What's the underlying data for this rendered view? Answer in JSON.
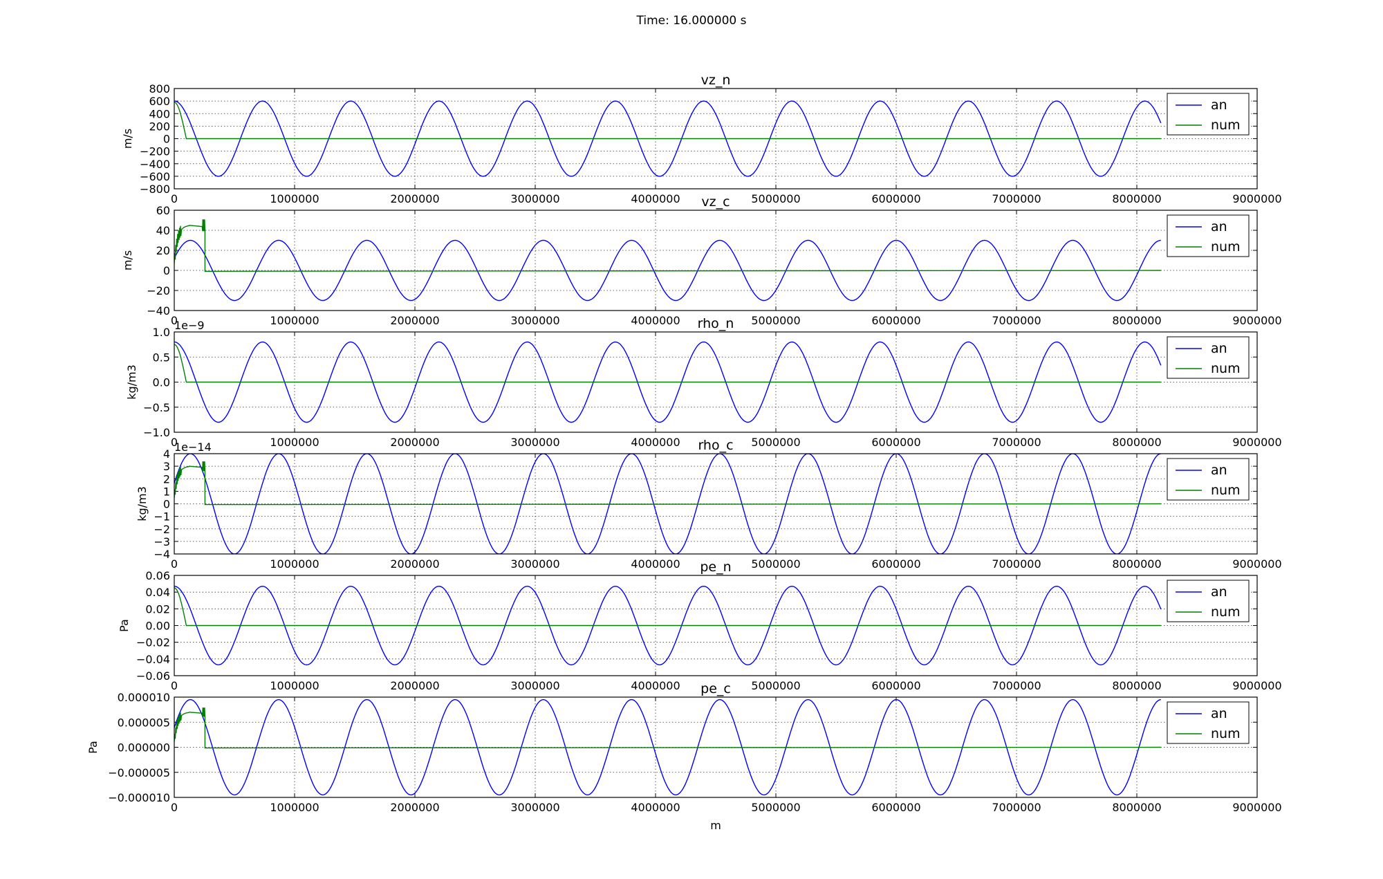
{
  "figure": {
    "suptitle": "Time: 16.000000 s",
    "shared_xlabel": "m"
  },
  "chart_data": [
    {
      "type": "line",
      "title": "vz_n",
      "ylabel": "m/s",
      "xlabel": "",
      "xlim": [
        0,
        9000000
      ],
      "ylim": [
        -800,
        800
      ],
      "xticks": [
        0,
        1000000,
        2000000,
        3000000,
        4000000,
        5000000,
        6000000,
        7000000,
        8000000,
        9000000
      ],
      "xtick_labels": [
        "0",
        "1000000",
        "2000000",
        "3000000",
        "4000000",
        "5000000",
        "6000000",
        "7000000",
        "8000000",
        "9000000"
      ],
      "yticks": [
        -800,
        -600,
        -400,
        -200,
        0,
        200,
        400,
        600,
        800
      ],
      "ytick_labels": [
        "−800",
        "−600",
        "−400",
        "−200",
        "0",
        "200",
        "400",
        "600",
        "800"
      ],
      "offset_label": "",
      "grid": true,
      "legend": "upper right",
      "x_end": 8200000,
      "series": [
        {
          "name": "an",
          "color": "#0000ff",
          "amplitude": 600,
          "wavelength": 733333,
          "phase": 0.0
        },
        {
          "name": "num",
          "color": "#008000",
          "start_value": 580,
          "decay_x": 100000,
          "spikes": false
        }
      ]
    },
    {
      "type": "line",
      "title": "vz_c",
      "ylabel": "m/s",
      "xlabel": "",
      "xlim": [
        0,
        9000000
      ],
      "ylim": [
        -40,
        60
      ],
      "xticks": [
        0,
        1000000,
        2000000,
        3000000,
        4000000,
        5000000,
        6000000,
        7000000,
        8000000,
        9000000
      ],
      "xtick_labels": [
        "0",
        "1000000",
        "2000000",
        "3000000",
        "4000000",
        "5000000",
        "6000000",
        "7000000",
        "8000000",
        "9000000"
      ],
      "yticks": [
        -40,
        -20,
        0,
        20,
        40,
        60
      ],
      "ytick_labels": [
        "−40",
        "−20",
        "0",
        "20",
        "40",
        "60"
      ],
      "offset_label": "",
      "grid": true,
      "legend": "upper right",
      "x_end": 8200000,
      "series": [
        {
          "name": "an",
          "color": "#0000ff",
          "amplitude": 30,
          "wavelength": 733333,
          "phase": -1.15
        },
        {
          "name": "num",
          "color": "#008000",
          "plateau": 45,
          "plateau_end_x": 255000,
          "spikes": true
        }
      ]
    },
    {
      "type": "line",
      "title": "rho_n",
      "ylabel": "kg/m3",
      "xlabel": "",
      "xlim": [
        0,
        9000000
      ],
      "ylim": [
        -1.0,
        1.0
      ],
      "xticks": [
        0,
        1000000,
        2000000,
        3000000,
        4000000,
        5000000,
        6000000,
        7000000,
        8000000,
        9000000
      ],
      "xtick_labels": [
        "0",
        "1000000",
        "2000000",
        "3000000",
        "4000000",
        "5000000",
        "6000000",
        "7000000",
        "8000000",
        "9000000"
      ],
      "yticks": [
        -1.0,
        -0.5,
        0.0,
        0.5,
        1.0
      ],
      "ytick_labels": [
        "−1.0",
        "−0.5",
        "0.0",
        "0.5",
        "1.0"
      ],
      "offset_label": "1e−9",
      "grid": true,
      "legend": "upper right",
      "x_end": 8200000,
      "series": [
        {
          "name": "an",
          "color": "#0000ff",
          "amplitude": 0.8,
          "wavelength": 733333,
          "phase": 0.0
        },
        {
          "name": "num",
          "color": "#008000",
          "start_value": 0.75,
          "decay_x": 100000,
          "spikes": false
        }
      ]
    },
    {
      "type": "line",
      "title": "rho_c",
      "ylabel": "kg/m3",
      "xlabel": "",
      "xlim": [
        0,
        9000000
      ],
      "ylim": [
        -4,
        4
      ],
      "xticks": [
        0,
        1000000,
        2000000,
        3000000,
        4000000,
        5000000,
        6000000,
        7000000,
        8000000,
        9000000
      ],
      "xtick_labels": [
        "0",
        "1000000",
        "2000000",
        "3000000",
        "4000000",
        "5000000",
        "6000000",
        "7000000",
        "8000000",
        "9000000"
      ],
      "yticks": [
        -4,
        -3,
        -2,
        -1,
        0,
        1,
        2,
        3,
        4
      ],
      "ytick_labels": [
        "−4",
        "−3",
        "−2",
        "−1",
        "0",
        "1",
        "2",
        "3",
        "4"
      ],
      "offset_label": "1e−14",
      "grid": true,
      "legend": "upper right",
      "x_end": 8200000,
      "series": [
        {
          "name": "an",
          "color": "#0000ff",
          "amplitude": 4.0,
          "wavelength": 733333,
          "phase": -1.15
        },
        {
          "name": "num",
          "color": "#008000",
          "plateau": 3.0,
          "plateau_end_x": 255000,
          "spikes": true
        }
      ]
    },
    {
      "type": "line",
      "title": "pe_n",
      "ylabel": "Pa",
      "xlabel": "",
      "xlim": [
        0,
        9000000
      ],
      "ylim": [
        -0.06,
        0.06
      ],
      "xticks": [
        0,
        1000000,
        2000000,
        3000000,
        4000000,
        5000000,
        6000000,
        7000000,
        8000000,
        9000000
      ],
      "xtick_labels": [
        "0",
        "1000000",
        "2000000",
        "3000000",
        "4000000",
        "5000000",
        "6000000",
        "7000000",
        "8000000",
        "9000000"
      ],
      "yticks": [
        -0.06,
        -0.04,
        -0.02,
        0.0,
        0.02,
        0.04,
        0.06
      ],
      "ytick_labels": [
        "−0.06",
        "−0.04",
        "−0.02",
        "0.00",
        "0.02",
        "0.04",
        "0.06"
      ],
      "offset_label": "",
      "grid": true,
      "legend": "upper right",
      "x_end": 8200000,
      "series": [
        {
          "name": "an",
          "color": "#0000ff",
          "amplitude": 0.047,
          "wavelength": 733333,
          "phase": 0.0
        },
        {
          "name": "num",
          "color": "#008000",
          "start_value": 0.045,
          "decay_x": 100000,
          "spikes": false
        }
      ]
    },
    {
      "type": "line",
      "title": "pe_c",
      "ylabel": "Pa",
      "xlabel": "m",
      "xlim": [
        0,
        9000000
      ],
      "ylim": [
        -1e-05,
        1e-05
      ],
      "xticks": [
        0,
        1000000,
        2000000,
        3000000,
        4000000,
        5000000,
        6000000,
        7000000,
        8000000,
        9000000
      ],
      "xtick_labels": [
        "0",
        "1000000",
        "2000000",
        "3000000",
        "4000000",
        "5000000",
        "6000000",
        "7000000",
        "8000000",
        "9000000"
      ],
      "yticks": [
        -1e-05,
        -5e-06,
        0.0,
        5e-06,
        1e-05
      ],
      "ytick_labels": [
        "−0.000010",
        "−0.000005",
        "0.000000",
        "0.000005",
        "0.000010"
      ],
      "offset_label": "",
      "grid": true,
      "legend": "upper right",
      "x_end": 8200000,
      "series": [
        {
          "name": "an",
          "color": "#0000ff",
          "amplitude": 9.5e-06,
          "wavelength": 733333,
          "phase": -1.15
        },
        {
          "name": "num",
          "color": "#008000",
          "plateau": 7e-06,
          "plateau_end_x": 255000,
          "spikes": true
        }
      ]
    }
  ]
}
